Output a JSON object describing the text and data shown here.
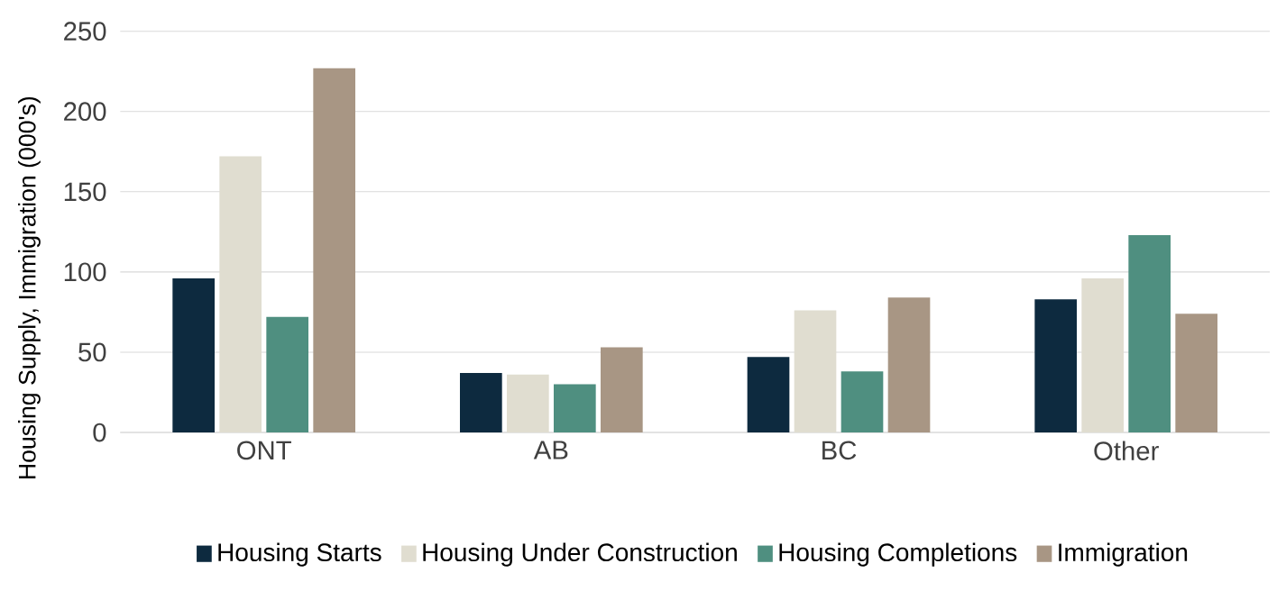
{
  "chart_data": {
    "type": "bar",
    "ylabel": "Housing Supply, Immigration (000's)",
    "categories": [
      "ONT",
      "AB",
      "BC",
      "Other"
    ],
    "series": [
      {
        "name": "Housing Starts",
        "color": "#0d2a3f",
        "values": [
          96,
          37,
          47,
          83
        ]
      },
      {
        "name": "Housing Under Construction",
        "color": "#e0ddd0",
        "values": [
          172,
          36,
          76,
          96
        ]
      },
      {
        "name": "Housing Completions",
        "color": "#4f8f80",
        "values": [
          72,
          30,
          38,
          123
        ]
      },
      {
        "name": "Immigration",
        "color": "#a89684",
        "values": [
          227,
          53,
          84,
          74
        ]
      }
    ],
    "ylim": [
      0,
      250
    ],
    "yticks": [
      0,
      50,
      100,
      150,
      200,
      250
    ],
    "grid": "y",
    "legend": "bottom"
  }
}
